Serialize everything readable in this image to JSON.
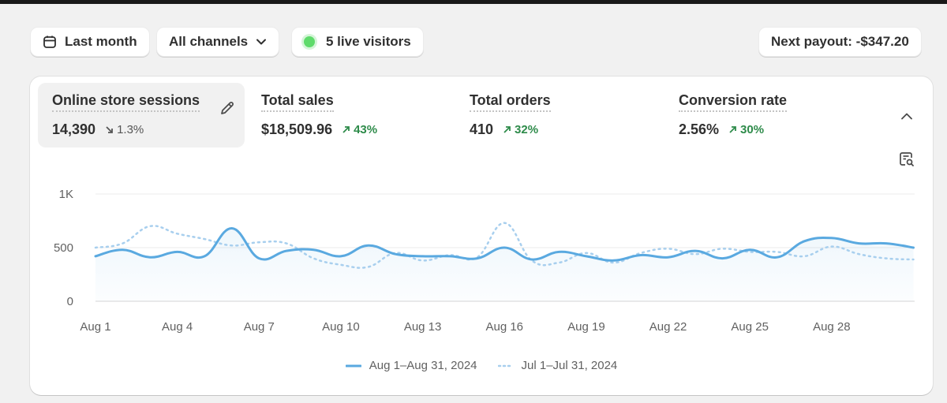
{
  "toolbar": {
    "date_range": "Last month",
    "channel_filter": "All channels",
    "live_visitors": "5 live visitors",
    "next_payout": "Next payout: -$347.20"
  },
  "metrics": [
    {
      "label": "Online store sessions",
      "value": "14,390",
      "change": "1.3%",
      "direction": "down",
      "active": true
    },
    {
      "label": "Total sales",
      "value": "$18,509.96",
      "change": "43%",
      "direction": "up",
      "active": false
    },
    {
      "label": "Total orders",
      "value": "410",
      "change": "32%",
      "direction": "up",
      "active": false
    },
    {
      "label": "Conversion rate",
      "value": "2.56%",
      "change": "30%",
      "direction": "up",
      "active": false
    }
  ],
  "colors": {
    "current": "#5aa9e0",
    "previous": "#a8cfee",
    "up": "#2e8b4a"
  },
  "chart_data": {
    "type": "line",
    "ylim": [
      0,
      1000
    ],
    "yticks": [
      "0",
      "500",
      "1K"
    ],
    "ytick_values": [
      0,
      500,
      1000
    ],
    "x_tick_labels": [
      "Aug 1",
      "Aug 4",
      "Aug 7",
      "Aug 10",
      "Aug 13",
      "Aug 16",
      "Aug 19",
      "Aug 22",
      "Aug 25",
      "Aug 28"
    ],
    "x_tick_days": [
      1,
      4,
      7,
      10,
      13,
      16,
      19,
      22,
      25,
      28
    ],
    "days": 31,
    "series": [
      {
        "name": "Aug 1–Aug 31, 2024",
        "style": "solid",
        "values": [
          420,
          480,
          410,
          460,
          420,
          680,
          400,
          470,
          480,
          420,
          520,
          440,
          420,
          420,
          400,
          500,
          390,
          460,
          420,
          380,
          430,
          410,
          470,
          400,
          480,
          410,
          560,
          590,
          540,
          540,
          500
        ]
      },
      {
        "name": "Jul 1–Jul 31, 2024",
        "style": "dotted",
        "values": [
          500,
          540,
          700,
          630,
          580,
          520,
          550,
          540,
          400,
          340,
          320,
          450,
          380,
          430,
          410,
          730,
          380,
          360,
          450,
          360,
          450,
          490,
          440,
          490,
          460,
          460,
          420,
          510,
          440,
          400,
          390
        ]
      }
    ]
  }
}
